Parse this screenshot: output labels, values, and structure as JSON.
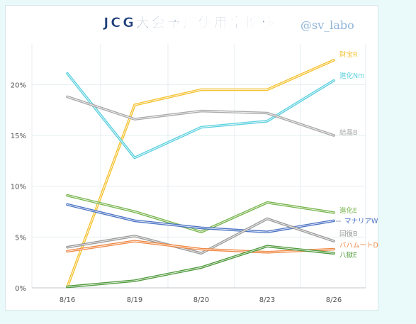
{
  "chart_data": {
    "type": "line",
    "title": "JCG大会予選使用率推移",
    "watermark": "@sv_labo",
    "categories": [
      "8/16",
      "8/19",
      "8/20",
      "8/23",
      "8/26"
    ],
    "ylim": [
      0,
      24
    ],
    "yticks": [
      0,
      5,
      10,
      15,
      20
    ],
    "ytick_suffix": "%",
    "grid": true,
    "legend": "inline-right",
    "series": [
      {
        "name": "財宝R",
        "color": "#f5c230",
        "values": [
          0.1,
          18.0,
          19.5,
          19.5,
          22.4
        ]
      },
      {
        "name": "進化Nm",
        "color": "#5bd0de",
        "values": [
          21.1,
          12.8,
          15.8,
          16.4,
          20.4
        ]
      },
      {
        "name": "結晶B",
        "color": "#a9a9a9",
        "values": [
          18.8,
          16.6,
          17.4,
          17.2,
          15.0
        ]
      },
      {
        "name": "進化E",
        "color": "#79b54e",
        "values": [
          9.1,
          7.5,
          5.5,
          8.4,
          7.4
        ]
      },
      {
        "name": "マナリアW",
        "color": "#4c74c4",
        "values": [
          8.2,
          6.6,
          5.9,
          5.5,
          6.6
        ]
      },
      {
        "name": "回復B",
        "color": "#9a9a9a",
        "values": [
          4.0,
          5.1,
          3.4,
          6.8,
          4.6
        ]
      },
      {
        "name": "バハムートD",
        "color": "#ef8845",
        "values": [
          3.6,
          4.6,
          3.8,
          3.5,
          3.8
        ]
      },
      {
        "name": "八獄E",
        "color": "#4f9a3c",
        "values": [
          0.1,
          0.7,
          2.0,
          4.1,
          3.4
        ]
      }
    ]
  }
}
